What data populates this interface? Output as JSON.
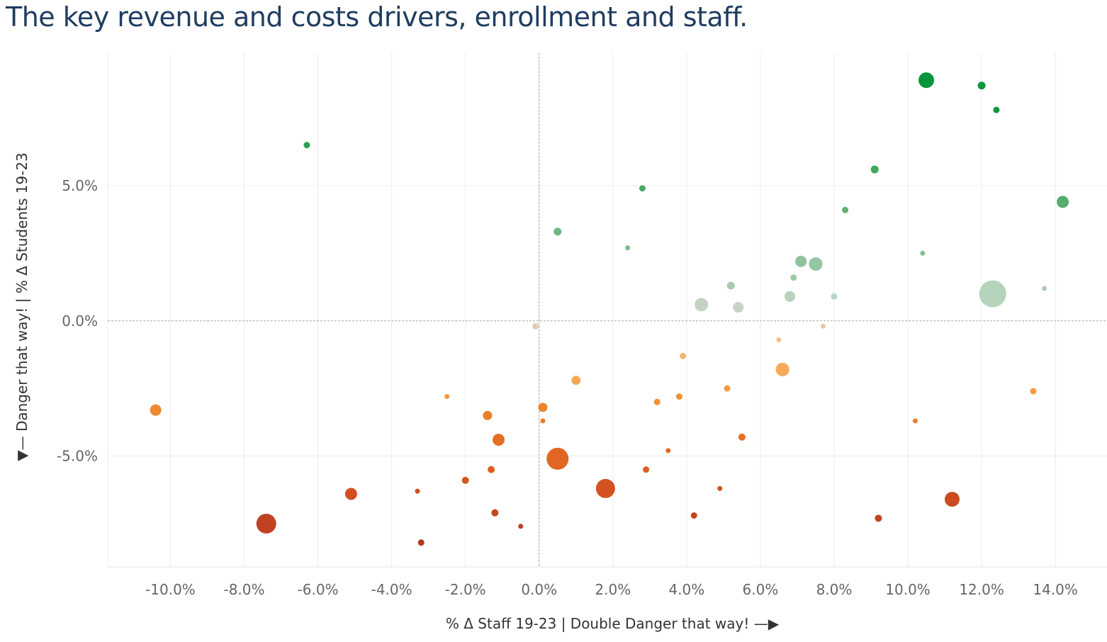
{
  "chart_data": {
    "type": "scatter",
    "title": "The key revenue and costs drivers, enrollment and staff.",
    "xlabel": "% Δ Staff 19-23 | Double Danger that way! —▶",
    "ylabel": "▼— Danger that way! | % Δ Students 19-23",
    "xlim": [
      -11.7,
      15.4
    ],
    "ylim": [
      -9.1,
      9.9
    ],
    "x_ticks": [
      "-10.0%",
      "-8.0%",
      "-6.0%",
      "-4.0%",
      "-2.0%",
      "0.0%",
      "2.0%",
      "4.0%",
      "6.0%",
      "8.0%",
      "10.0%",
      "12.0%",
      "14.0%"
    ],
    "x_tick_values": [
      -10,
      -8,
      -6,
      -4,
      -2,
      0,
      2,
      4,
      6,
      8,
      10,
      12,
      14
    ],
    "y_ticks": [
      "5.0%",
      "0.0%",
      "-5.0%"
    ],
    "y_tick_values": [
      5,
      0,
      -5
    ],
    "reference_lines": {
      "x": 0,
      "y": 0
    },
    "color_scale": "diverging orange-grey-green by % Δ Students",
    "points": [
      {
        "x": 10.5,
        "y": 8.9,
        "size": 11,
        "color": "#06953b"
      },
      {
        "x": 12.0,
        "y": 8.7,
        "size": 5.5,
        "color": "#0d963b"
      },
      {
        "x": 12.4,
        "y": 7.8,
        "size": 4.5,
        "color": "#10963c"
      },
      {
        "x": -6.3,
        "y": 6.5,
        "size": 4.5,
        "color": "#2ba253"
      },
      {
        "x": 9.1,
        "y": 5.6,
        "size": 5.5,
        "color": "#3ea75e"
      },
      {
        "x": 2.8,
        "y": 4.9,
        "size": 4.5,
        "color": "#4aa964"
      },
      {
        "x": 14.2,
        "y": 4.4,
        "size": 8.5,
        "color": "#55ac6d"
      },
      {
        "x": 8.3,
        "y": 4.1,
        "size": 4.5,
        "color": "#5fb073"
      },
      {
        "x": 0.5,
        "y": 3.3,
        "size": 5.5,
        "color": "#6db67e"
      },
      {
        "x": 2.4,
        "y": 2.7,
        "size": 3.5,
        "color": "#7bbd8a"
      },
      {
        "x": 10.4,
        "y": 2.5,
        "size": 3.5,
        "color": "#85c192"
      },
      {
        "x": 7.1,
        "y": 2.2,
        "size": 8,
        "color": "#8fc39b"
      },
      {
        "x": 7.5,
        "y": 2.1,
        "size": 9.5,
        "color": "#94c69f"
      },
      {
        "x": 6.9,
        "y": 1.6,
        "size": 4.5,
        "color": "#a0c9a8"
      },
      {
        "x": 5.2,
        "y": 1.3,
        "size": 5.5,
        "color": "#a8cbae"
      },
      {
        "x": 13.7,
        "y": 1.2,
        "size": 3.5,
        "color": "#aecdb3"
      },
      {
        "x": 12.3,
        "y": 1.0,
        "size": 19,
        "color": "#b6d3bb"
      },
      {
        "x": 6.8,
        "y": 0.9,
        "size": 7.5,
        "color": "#b8d2bb"
      },
      {
        "x": 8.0,
        "y": 0.9,
        "size": 4.5,
        "color": "#bdd4c0"
      },
      {
        "x": 4.4,
        "y": 0.6,
        "size": 9.5,
        "color": "#c3d2c3"
      },
      {
        "x": 5.4,
        "y": 0.5,
        "size": 7.5,
        "color": "#c8d3c6"
      },
      {
        "x": -0.1,
        "y": -0.2,
        "size": 4.5,
        "color": "#e2cdb2"
      },
      {
        "x": 7.7,
        "y": -0.2,
        "size": 3.5,
        "color": "#e7c8a6"
      },
      {
        "x": 6.5,
        "y": -0.7,
        "size": 3.5,
        "color": "#f0bf8a"
      },
      {
        "x": 3.9,
        "y": -1.3,
        "size": 4.5,
        "color": "#f4b36f"
      },
      {
        "x": 6.6,
        "y": -1.8,
        "size": 9.5,
        "color": "#f4aa59"
      },
      {
        "x": 1.0,
        "y": -2.2,
        "size": 6.5,
        "color": "#f6a955"
      },
      {
        "x": 13.4,
        "y": -2.6,
        "size": 4.5,
        "color": "#f39c45"
      },
      {
        "x": 5.1,
        "y": -2.5,
        "size": 4.5,
        "color": "#f49b42"
      },
      {
        "x": -2.5,
        "y": -2.8,
        "size": 3.5,
        "color": "#f4963c"
      },
      {
        "x": 3.8,
        "y": -2.8,
        "size": 4.5,
        "color": "#f29237"
      },
      {
        "x": 3.2,
        "y": -3.0,
        "size": 4.5,
        "color": "#f18f34"
      },
      {
        "x": -10.4,
        "y": -3.3,
        "size": 8,
        "color": "#ef8a2e"
      },
      {
        "x": 0.1,
        "y": -3.2,
        "size": 6.5,
        "color": "#ec842c"
      },
      {
        "x": -1.4,
        "y": -3.5,
        "size": 6.5,
        "color": "#eb8029"
      },
      {
        "x": 0.1,
        "y": -3.7,
        "size": 3.5,
        "color": "#ea7c27"
      },
      {
        "x": 10.2,
        "y": -3.7,
        "size": 3.5,
        "color": "#ea7b26"
      },
      {
        "x": 5.5,
        "y": -4.3,
        "size": 5,
        "color": "#e57224"
      },
      {
        "x": -1.1,
        "y": -4.4,
        "size": 8.5,
        "color": "#e46f23"
      },
      {
        "x": 3.5,
        "y": -4.8,
        "size": 3.5,
        "color": "#e06921"
      },
      {
        "x": 0.5,
        "y": -5.1,
        "size": 15.5,
        "color": "#e26623"
      },
      {
        "x": -1.3,
        "y": -5.5,
        "size": 5,
        "color": "#db5f21"
      },
      {
        "x": 2.9,
        "y": -5.5,
        "size": 4.5,
        "color": "#da5e21"
      },
      {
        "x": -2.0,
        "y": -5.9,
        "size": 5,
        "color": "#d5571f"
      },
      {
        "x": 1.8,
        "y": -6.2,
        "size": 13.5,
        "color": "#d4521f"
      },
      {
        "x": 4.9,
        "y": -6.2,
        "size": 3.5,
        "color": "#d1531f"
      },
      {
        "x": -5.1,
        "y": -6.4,
        "size": 8.5,
        "color": "#cf4f20"
      },
      {
        "x": -3.3,
        "y": -6.3,
        "size": 3.5,
        "color": "#cf5020"
      },
      {
        "x": 11.2,
        "y": -6.6,
        "size": 10.5,
        "color": "#cb4a20"
      },
      {
        "x": -1.2,
        "y": -7.1,
        "size": 5,
        "color": "#c34520"
      },
      {
        "x": 4.2,
        "y": -7.2,
        "size": 4.5,
        "color": "#c24420"
      },
      {
        "x": 9.2,
        "y": -7.3,
        "size": 5,
        "color": "#c14320"
      },
      {
        "x": -7.4,
        "y": -7.5,
        "size": 14,
        "color": "#bf4322"
      },
      {
        "x": -0.5,
        "y": -7.6,
        "size": 3.5,
        "color": "#bc4120"
      },
      {
        "x": -3.2,
        "y": -8.2,
        "size": 4.5,
        "color": "#b23b1e"
      }
    ]
  }
}
